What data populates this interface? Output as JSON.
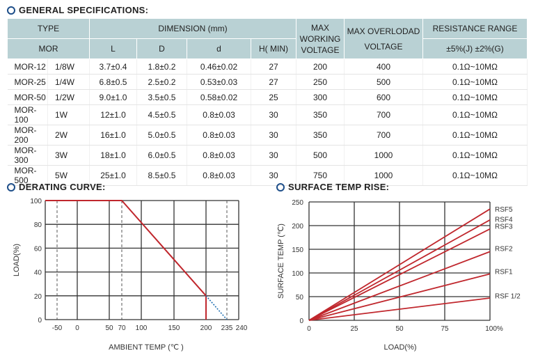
{
  "specs": {
    "title": "GENERAL SPECIFICATIONS:",
    "headers": {
      "type": "TYPE",
      "dimension": "DIMENSION (mm)",
      "max_working": "MAX WORKING VOLTAGE",
      "max_overload": "MAX OVERLODAD VOLTAGE",
      "resistance": "RESISTANCE RANGE",
      "mor": "MOR",
      "L": "L",
      "D": "D",
      "d": "d",
      "H": "H( MIN)",
      "tolerance": "±5%(J) ±2%(G)"
    },
    "rows": [
      [
        "MOR-12",
        "1/8W",
        "3.7±0.4",
        "1.8±0.2",
        "0.46±0.02",
        "27",
        "200",
        "400",
        "0.1Ω~10MΩ"
      ],
      [
        "MOR-25",
        "1/4W",
        "6.8±0.5",
        "2.5±0.2",
        "0.53±0.03",
        "27",
        "250",
        "500",
        "0.1Ω~10MΩ"
      ],
      [
        "MOR-50",
        "1/2W",
        "9.0±1.0",
        "3.5±0.5",
        "0.58±0.02",
        "25",
        "300",
        "600",
        "0.1Ω~10MΩ"
      ],
      [
        "MOR-100",
        "1W",
        "12±1.0",
        "4.5±0.5",
        "0.8±0.03",
        "30",
        "350",
        "700",
        "0.1Ω~10MΩ"
      ],
      [
        "MOR-200",
        "2W",
        "16±1.0",
        "5.0±0.5",
        "0.8±0.03",
        "30",
        "350",
        "700",
        "0.1Ω~10MΩ"
      ],
      [
        "MOR-300",
        "3W",
        "18±1.0",
        "6.0±0.5",
        "0.8±0.03",
        "30",
        "500",
        "1000",
        "0.1Ω~10MΩ"
      ],
      [
        "MOR-500",
        "5W",
        "25±1.0",
        "8.5±0.5",
        "0.8±0.03",
        "30",
        "750",
        "1000",
        "0.1Ω~10MΩ"
      ]
    ]
  },
  "chart_data": [
    {
      "type": "line",
      "title": "DERATING CURVE:",
      "xlabel": "AMBIENT TEMP (℃ )",
      "ylabel": "LOAD(%)",
      "x_ticks": [
        -50,
        0,
        50,
        70,
        100,
        150,
        200,
        235,
        240
      ],
      "y_ticks": [
        0,
        20,
        40,
        60,
        80,
        100
      ],
      "dashed_gridlines_x": [
        -50,
        70,
        235
      ],
      "grid": true,
      "series": [
        {
          "style": "solid",
          "color": "#c0272d",
          "points": [
            [
              -70,
              100
            ],
            [
              70,
              100
            ],
            [
              200,
              20
            ],
            [
              200,
              0
            ]
          ]
        },
        {
          "style": "dotted",
          "color": "#1f6fb2",
          "points": [
            [
              200,
              20
            ],
            [
              235,
              0
            ]
          ]
        }
      ]
    },
    {
      "type": "line",
      "title": "SURFACE TEMP RISE:",
      "xlabel": "LOAD(%)",
      "ylabel": "SURFACE TEMP (℃)",
      "x_ticks": [
        "0",
        "25",
        "50",
        "75",
        "100%"
      ],
      "y_ticks": [
        0,
        50,
        100,
        150,
        200,
        250
      ],
      "xlim": [
        0,
        100
      ],
      "ylim": [
        0,
        250
      ],
      "grid": true,
      "color": "#c0272d",
      "series": [
        {
          "name": "RSF5",
          "values": [
            [
              0,
              0
            ],
            [
              100,
              235
            ]
          ]
        },
        {
          "name": "RSF4",
          "values": [
            [
              0,
              0
            ],
            [
              100,
              212
            ]
          ]
        },
        {
          "name": "RSF3",
          "values": [
            [
              0,
              0
            ],
            [
              100,
              193
            ]
          ]
        },
        {
          "name": "RSF2",
          "values": [
            [
              0,
              0
            ],
            [
              100,
              145
            ]
          ]
        },
        {
          "name": "RSF1",
          "values": [
            [
              0,
              0
            ],
            [
              100,
              98
            ]
          ]
        },
        {
          "name": "RSF 1/2",
          "values": [
            [
              0,
              0
            ],
            [
              100,
              47
            ]
          ]
        }
      ]
    }
  ]
}
